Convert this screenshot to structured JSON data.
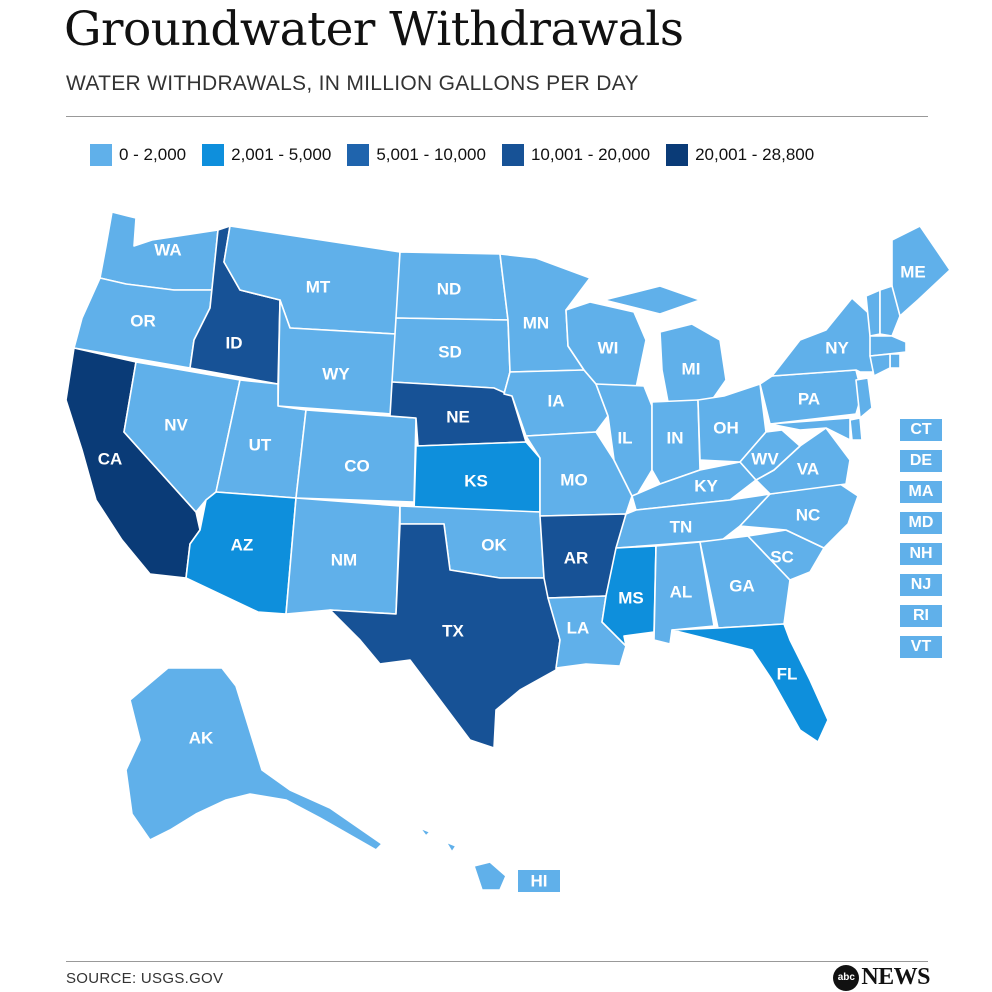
{
  "title": "Groundwater Withdrawals",
  "subtitle": "WATER WITHDRAWALS, IN MILLION GALLONS PER DAY",
  "legend": [
    {
      "label": "0 - 2,000",
      "color": "#60b0ea"
    },
    {
      "label": "2,001 - 5,000",
      "color": "#0e8fdc"
    },
    {
      "label": "5,001 - 10,000",
      "color": "#1f64ad"
    },
    {
      "label": "10,001 - 20,000",
      "color": "#175296"
    },
    {
      "label": "20,001 - 28,800",
      "color": "#0a3b77"
    }
  ],
  "states": {
    "WA": {
      "label": "WA",
      "tier": 0
    },
    "OR": {
      "label": "OR",
      "tier": 0
    },
    "CA": {
      "label": "CA",
      "tier": 4
    },
    "ID": {
      "label": "ID",
      "tier": 3
    },
    "NV": {
      "label": "NV",
      "tier": 0
    },
    "MT": {
      "label": "MT",
      "tier": 0
    },
    "WY": {
      "label": "WY",
      "tier": 0
    },
    "UT": {
      "label": "UT",
      "tier": 0
    },
    "AZ": {
      "label": "AZ",
      "tier": 1
    },
    "CO": {
      "label": "CO",
      "tier": 0
    },
    "NM": {
      "label": "NM",
      "tier": 0
    },
    "ND": {
      "label": "ND",
      "tier": 0
    },
    "SD": {
      "label": "SD",
      "tier": 0
    },
    "NE": {
      "label": "NE",
      "tier": 3
    },
    "KS": {
      "label": "KS",
      "tier": 1
    },
    "OK": {
      "label": "OK",
      "tier": 0
    },
    "TX": {
      "label": "TX",
      "tier": 3
    },
    "MN": {
      "label": "MN",
      "tier": 0
    },
    "IA": {
      "label": "IA",
      "tier": 0
    },
    "MO": {
      "label": "MO",
      "tier": 0
    },
    "AR": {
      "label": "AR",
      "tier": 3
    },
    "LA": {
      "label": "LA",
      "tier": 0
    },
    "WI": {
      "label": "WI",
      "tier": 0
    },
    "IL": {
      "label": "IL",
      "tier": 0
    },
    "MI": {
      "label": "MI",
      "tier": 0
    },
    "IN": {
      "label": "IN",
      "tier": 0
    },
    "OH": {
      "label": "OH",
      "tier": 0
    },
    "KY": {
      "label": "KY",
      "tier": 0
    },
    "TN": {
      "label": "TN",
      "tier": 0
    },
    "MS": {
      "label": "MS",
      "tier": 1
    },
    "AL": {
      "label": "AL",
      "tier": 0
    },
    "GA": {
      "label": "GA",
      "tier": 0
    },
    "FL": {
      "label": "FL",
      "tier": 1
    },
    "SC": {
      "label": "SC",
      "tier": 0
    },
    "NC": {
      "label": "NC",
      "tier": 0
    },
    "VA": {
      "label": "VA",
      "tier": 0
    },
    "WV": {
      "label": "WV",
      "tier": 0
    },
    "PA": {
      "label": "PA",
      "tier": 0
    },
    "NY": {
      "label": "NY",
      "tier": 0
    },
    "ME": {
      "label": "ME",
      "tier": 0
    },
    "AK": {
      "label": "AK",
      "tier": 0
    },
    "HI": {
      "label": "HI",
      "tier": 0
    }
  },
  "small_states": [
    {
      "label": "CT",
      "tier": 0
    },
    {
      "label": "DE",
      "tier": 0
    },
    {
      "label": "MA",
      "tier": 0
    },
    {
      "label": "MD",
      "tier": 0
    },
    {
      "label": "NH",
      "tier": 0
    },
    {
      "label": "NJ",
      "tier": 0
    },
    {
      "label": "RI",
      "tier": 0
    },
    {
      "label": "VT",
      "tier": 0
    }
  ],
  "source": "SOURCE: USGS.GOV",
  "logo": {
    "circle_text": "abc",
    "wordmark": "NEWS"
  }
}
